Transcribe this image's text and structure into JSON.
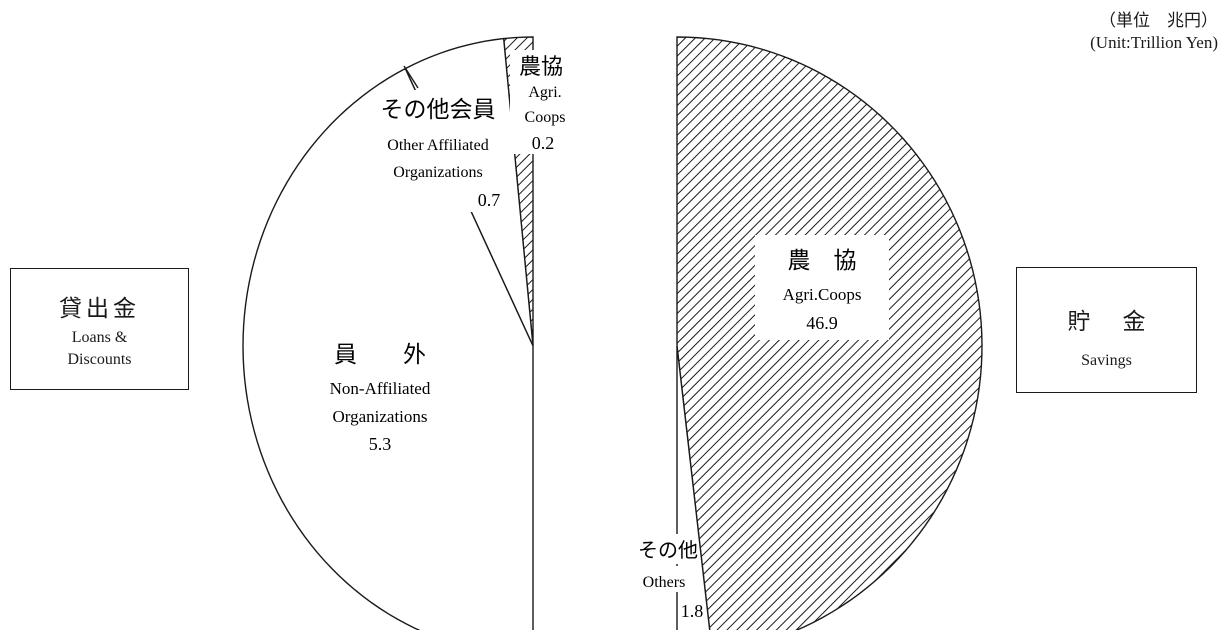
{
  "unit": {
    "jp": "（単位　兆円）",
    "en": "(Unit:Trillion Yen)"
  },
  "left_box": {
    "jp": "貸出金",
    "en_line1": "Loans &",
    "en_line2": "Discounts"
  },
  "right_box": {
    "jp": "貯金",
    "en": "Savings"
  },
  "colors": {
    "line": "#1a1a1a",
    "fill": "#ffffff",
    "hatch": "#1a1a1a"
  },
  "chart_data": [
    {
      "type": "pie",
      "half": "left",
      "title": "貸出金 Loans & Discounts",
      "slices": [
        {
          "id": "agri-coops",
          "jp": "農協",
          "en": "Agri.",
          "en2": "Coops",
          "value": 0.2,
          "label": "0.2",
          "pattern": "hatch"
        },
        {
          "id": "other-affiliated",
          "jp": "その他会員",
          "en": "Other Affiliated",
          "en2": "Organizations",
          "value": 0.7,
          "label": "0.7",
          "pattern": "none"
        },
        {
          "id": "non-affiliated",
          "jp": "員　　外",
          "en": "Non-Affiliated",
          "en2": "Organizations",
          "value": 5.3,
          "label": "5.3",
          "pattern": "none"
        }
      ]
    },
    {
      "type": "pie",
      "half": "right",
      "title": "貯金 Savings",
      "slices": [
        {
          "id": "agri-coops",
          "jp": "農　協",
          "en": "Agri.Coops",
          "value": 46.9,
          "label": "46.9",
          "pattern": "hatch"
        },
        {
          "id": "others",
          "jp": "その他",
          "en": "Others",
          "value": 1.8,
          "label": "1.8",
          "pattern": "none"
        }
      ]
    }
  ]
}
